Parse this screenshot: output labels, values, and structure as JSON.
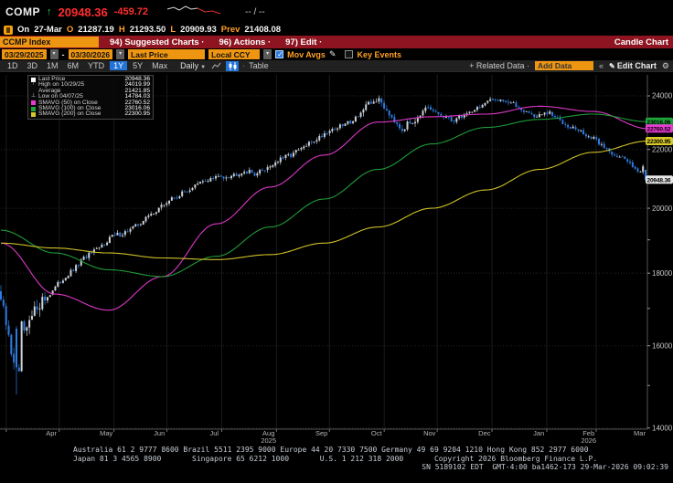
{
  "titlebar": {
    "ticker": "COMP",
    "direction": "↑",
    "last": "20948.36",
    "change": "-459.72",
    "range": "-- / --"
  },
  "quote_line": {
    "prefix": "On",
    "date": "27-Mar",
    "o_label": "O",
    "open": "21287.19",
    "h_label": "H",
    "high": "21293.50",
    "l_label": "L",
    "low": "20909.93",
    "prev_label": "Prev",
    "prev_close": "21408.08"
  },
  "menu_bar": {
    "security": "CCMP Index",
    "items": [
      "94) Suggested Charts ·",
      "96) Actions ·",
      "97) Edit ·"
    ],
    "right_label": "Candle Chart"
  },
  "controls": {
    "date_from": "03/29/2025",
    "date_to": "03/30/2026",
    "price_field": "Last Price",
    "currency_field": "Local CCY",
    "mov_avgs_label": "Mov Avgs",
    "mov_avgs_checked": true,
    "key_events_label": "Key Events",
    "key_events_checked": false
  },
  "toolbar": {
    "periods": [
      "1D",
      "3D",
      "1M",
      "6M",
      "YTD",
      "1Y",
      "5Y",
      "Max"
    ],
    "active_period": "1Y",
    "frequency": "Daily",
    "table_label": "Table",
    "related_data": "+ Related Data ·",
    "add_data_placeholder": "Add Data",
    "edit_chart": "Edit Chart"
  },
  "legend": {
    "rows": [
      {
        "marker": "#ffffff",
        "label": "Last Price",
        "value": "20948.36"
      },
      {
        "marker": "high",
        "label": "High on 10/29/25",
        "value": "24019.99"
      },
      {
        "marker": "none",
        "label": "Average",
        "value": "21421.85"
      },
      {
        "marker": "low",
        "label": "Low on 04/07/25",
        "value": "14784.03"
      },
      {
        "marker": "#e83ad2",
        "label": "SMAVG (50) on Close",
        "value": "22760.52"
      },
      {
        "marker": "#1fa33a",
        "label": "SMAVG (100) on Close",
        "value": "23016.06"
      },
      {
        "marker": "#d8ca28",
        "label": "SMAVG (200) on Close",
        "value": "22300.95"
      }
    ]
  },
  "chart_data": {
    "type": "candlestick",
    "security": "CCMP Index",
    "frequency": "daily",
    "sessions": 250,
    "date_range": [
      "03/29/2025",
      "03/30/2026"
    ],
    "scale": "log",
    "ylim": [
      13980,
      24830
    ],
    "y_ticks": [
      14000,
      16000,
      18000,
      20000,
      22000,
      24000
    ],
    "y_minor_step": 1000,
    "stats": {
      "last": 20948.36,
      "high": 24019.99,
      "high_date": "10/29/25",
      "average": 21421.85,
      "low": 14784.03,
      "low_date": "04/07/25"
    },
    "last_session": {
      "date": "27-Mar",
      "open": 21287.19,
      "high": 21293.5,
      "low": 20909.93,
      "close": 20948.36,
      "prev_close": 21408.08,
      "change": -459.72
    },
    "candle_colors": {
      "up": "#ccd2d8",
      "down": "#2f7bdf"
    },
    "weekly_close_anchors": [
      17250,
      15600,
      16300,
      17100,
      17400,
      17800,
      18100,
      18500,
      18700,
      19100,
      19200,
      19400,
      19700,
      20000,
      20300,
      20500,
      20750,
      20950,
      21050,
      21100,
      21250,
      21150,
      21400,
      21650,
      21850,
      22100,
      22400,
      22700,
      22850,
      23100,
      23550,
      23900,
      23300,
      22750,
      23100,
      23500,
      23300,
      23050,
      23250,
      23500,
      23750,
      23900,
      23700,
      23450,
      23200,
      23350,
      23050,
      22800,
      22550,
      22300,
      21950,
      21700,
      21450,
      20990
    ],
    "pinned_candles": {
      "6": {
        "open": 16450,
        "high": 16520,
        "low": 14784.03,
        "close": 15450
      },
      "7": {
        "close": 15350
      },
      "8": {
        "close": 16650
      },
      "146": {
        "high": 24019.99,
        "close": 23910
      },
      "248": {
        "close": 21408.08
      },
      "249": {
        "open": 21287.19,
        "high": 21293.5,
        "low": 20909.93,
        "close": 20948.36
      }
    },
    "moving_averages": [
      {
        "name": "SMAVG (50) on Close",
        "color": "#e83ad2",
        "last": 22760.52,
        "monthly_anchors": [
          18900,
          17400,
          16950,
          17900,
          19500,
          20700,
          21800,
          23000,
          23200,
          23300,
          23600,
          23400,
          22760.52
        ]
      },
      {
        "name": "SMAVG (100) on Close",
        "color": "#1fa33a",
        "last": 23016.06,
        "monthly_anchors": [
          19300,
          18600,
          18100,
          17900,
          18500,
          19400,
          20300,
          21300,
          22200,
          22800,
          23100,
          23300,
          23016.06
        ]
      },
      {
        "name": "SMAVG (200) on Close",
        "color": "#d8ca28",
        "last": 22300.95,
        "monthly_anchors": [
          18900,
          18750,
          18600,
          18450,
          18400,
          18550,
          18900,
          19400,
          20000,
          20600,
          21300,
          21900,
          22300.95
        ]
      }
    ],
    "axis_badges": [
      {
        "value": "23016.06",
        "color": "#1fa33a"
      },
      {
        "value": "22760.52",
        "color": "#e83ad2"
      },
      {
        "value": "22300.95",
        "color": "#d8ca28"
      },
      {
        "value": "20948.36",
        "color": "#e8e8e8"
      }
    ],
    "months": [
      {
        "label": "Apr",
        "t": 0.078
      },
      {
        "label": "May",
        "t": 0.163
      },
      {
        "label": "Jun",
        "t": 0.245
      },
      {
        "label": "Jul",
        "t": 0.33
      },
      {
        "label": "Aug",
        "t": 0.414,
        "year": "2025"
      },
      {
        "label": "Sep",
        "t": 0.496
      },
      {
        "label": "Oct",
        "t": 0.581
      },
      {
        "label": "Nov",
        "t": 0.663
      },
      {
        "label": "Dec",
        "t": 0.748
      },
      {
        "label": "Jan",
        "t": 0.832
      },
      {
        "label": "Feb",
        "t": 0.909,
        "year": "2026"
      },
      {
        "label": "Mar",
        "t": 0.988
      }
    ],
    "month_boundaries": [
      0.0082,
      0.0902,
      0.1749,
      0.2568,
      0.3415,
      0.4262,
      0.5082,
      0.5929,
      0.6749,
      0.7596,
      0.8443,
      0.9208
    ]
  },
  "footer": {
    "line1": "Australia 61 2 9777 8600 Brazil 5511 2395 9000 Europe 44 20 7330 7500 Germany 49 69 9204 1210 Hong Kong 852 2977 6000",
    "line2": "Japan 81 3 4565 8900       Singapore 65 6212 1000       U.S. 1 212 318 2000       Copyright 2026 Bloomberg Finance L.P.",
    "line3": "SN 5189102 EDT  GMT-4:00 ba1462-173 29-Mar-2026 09:02:39"
  }
}
